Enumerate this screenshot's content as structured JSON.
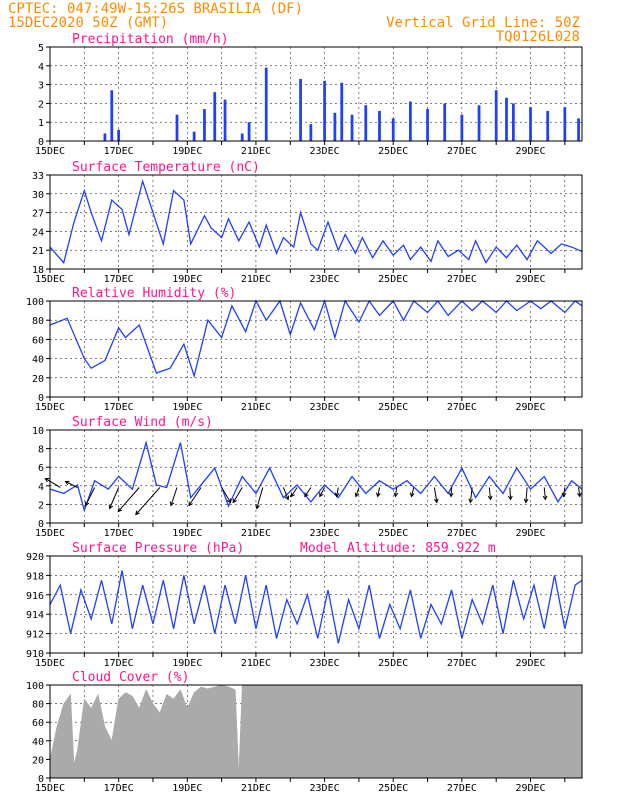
{
  "header": {
    "station": "CPTEC:  047:49W-15:26S  BRASILIA (DF)",
    "datetime": "15DEC2020 50Z (GMT)",
    "vgrid": "Vertical Grid Line: 50Z",
    "code": "TQ0126L028"
  },
  "colors": {
    "header": "#ff8c00",
    "title": "#ff1493",
    "line": "#1f3fff",
    "bar": "#1f3fff",
    "cloud": "#aaaaaa",
    "arrow": "#000000"
  },
  "chart_data": [
    {
      "id": "precip",
      "type": "bar",
      "title": "Precipitation (mm/h)",
      "ylim": [
        0,
        5
      ],
      "yticks": [
        "0",
        "1",
        "2",
        "3",
        "4",
        "5"
      ],
      "xlim": [
        0,
        15.5
      ],
      "xtick_labels": [
        "15DEC",
        "17DEC",
        "19DEC",
        "21DEC",
        "23DEC",
        "25DEC",
        "27DEC",
        "29DEC"
      ],
      "x": [
        1.6,
        1.8,
        2.0,
        3.7,
        4.2,
        4.5,
        4.8,
        5.1,
        5.6,
        5.8,
        6.3,
        7.3,
        7.6,
        8.0,
        8.3,
        8.5,
        8.8,
        9.2,
        9.6,
        10.0,
        10.5,
        11.0,
        11.5,
        12.0,
        12.5,
        13.0,
        13.3,
        13.5,
        14.0,
        14.5,
        15.0,
        15.4
      ],
      "values": [
        0.4,
        2.7,
        0.6,
        1.4,
        0.5,
        1.7,
        2.6,
        2.2,
        0.4,
        1.0,
        3.9,
        3.3,
        0.9,
        3.2,
        1.5,
        3.1,
        1.4,
        1.9,
        1.6,
        1.2,
        2.1,
        1.7,
        2.0,
        1.4,
        1.9,
        2.7,
        2.3,
        2.0,
        1.8,
        1.6,
        1.8,
        1.2
      ]
    },
    {
      "id": "temp",
      "type": "line",
      "title": "Surface Temperature (nC)",
      "ylim": [
        18,
        33
      ],
      "yticks": [
        "18",
        "21",
        "24",
        "27",
        "30",
        "33"
      ],
      "xlim": [
        0,
        15.5
      ],
      "xtick_labels": [
        "15DEC",
        "17DEC",
        "19DEC",
        "21DEC",
        "23DEC",
        "25DEC",
        "27DEC",
        "29DEC"
      ],
      "x": [
        0,
        0.4,
        0.7,
        1.0,
        1.2,
        1.5,
        1.8,
        2.1,
        2.3,
        2.7,
        3.0,
        3.3,
        3.6,
        3.9,
        4.1,
        4.5,
        4.7,
        5.0,
        5.2,
        5.5,
        5.8,
        6.1,
        6.3,
        6.6,
        6.8,
        7.1,
        7.3,
        7.6,
        7.8,
        8.1,
        8.4,
        8.6,
        8.9,
        9.1,
        9.4,
        9.7,
        10.0,
        10.3,
        10.5,
        10.8,
        11.1,
        11.3,
        11.6,
        11.9,
        12.2,
        12.4,
        12.7,
        13.0,
        13.3,
        13.6,
        13.9,
        14.2,
        14.6,
        14.9,
        15.2,
        15.5
      ],
      "values": [
        21.5,
        19.0,
        25.5,
        30.5,
        27.0,
        22.5,
        29.0,
        27.5,
        23.5,
        32.0,
        27.0,
        22.0,
        30.5,
        29.0,
        22.0,
        26.5,
        24.5,
        23.0,
        26.0,
        22.5,
        25.5,
        21.5,
        25.0,
        20.5,
        23.0,
        21.5,
        27.0,
        22.0,
        21.0,
        25.5,
        21.0,
        23.5,
        20.5,
        23.0,
        19.8,
        22.5,
        20.2,
        21.8,
        19.5,
        21.5,
        19.2,
        22.5,
        20.0,
        21.0,
        19.5,
        22.5,
        19.0,
        21.5,
        19.8,
        21.8,
        19.5,
        22.5,
        20.5,
        22.0,
        21.5,
        20.8
      ]
    },
    {
      "id": "rh",
      "type": "line",
      "title": "Relative Humidity (%)",
      "ylim": [
        0,
        100
      ],
      "yticks": [
        "0",
        "20",
        "40",
        "60",
        "80",
        "100"
      ],
      "xlim": [
        0,
        15.5
      ],
      "xtick_labels": [
        "15DEC",
        "17DEC",
        "19DEC",
        "21DEC",
        "23DEC",
        "25DEC",
        "27DEC",
        "29DEC"
      ],
      "x": [
        0,
        0.5,
        1.0,
        1.2,
        1.6,
        2.0,
        2.2,
        2.6,
        3.1,
        3.5,
        3.9,
        4.2,
        4.6,
        5.0,
        5.3,
        5.7,
        6.0,
        6.3,
        6.7,
        7.0,
        7.3,
        7.7,
        8.0,
        8.3,
        8.6,
        9.0,
        9.3,
        9.6,
        10.0,
        10.3,
        10.6,
        11.0,
        11.3,
        11.6,
        12.0,
        12.3,
        12.6,
        13.0,
        13.3,
        13.6,
        14.0,
        14.3,
        14.6,
        15.0,
        15.3,
        15.5
      ],
      "values": [
        75,
        82,
        40,
        30,
        38,
        72,
        62,
        75,
        25,
        30,
        55,
        22,
        80,
        62,
        95,
        68,
        100,
        80,
        100,
        65,
        98,
        70,
        100,
        62,
        100,
        78,
        100,
        85,
        100,
        80,
        100,
        88,
        100,
        85,
        100,
        90,
        100,
        88,
        100,
        90,
        100,
        92,
        100,
        88,
        100,
        95
      ]
    },
    {
      "id": "wind",
      "type": "line",
      "title": "Surface Wind (m/s)",
      "ylim": [
        0,
        11
      ],
      "yticks": [
        "0",
        "2",
        "4",
        "6",
        "8",
        "10"
      ],
      "xlim": [
        0,
        15.5
      ],
      "xtick_labels": [
        "15DEC",
        "17DEC",
        "19DEC",
        "21DEC",
        "23DEC",
        "25DEC",
        "27DEC",
        "29DEC"
      ],
      "x": [
        0,
        0.4,
        0.8,
        1.0,
        1.3,
        1.7,
        2.0,
        2.4,
        2.8,
        3.1,
        3.4,
        3.8,
        4.1,
        4.4,
        4.8,
        5.2,
        5.6,
        6.0,
        6.4,
        6.8,
        7.2,
        7.6,
        8.0,
        8.4,
        8.8,
        9.2,
        9.6,
        10.0,
        10.4,
        10.8,
        11.2,
        11.6,
        12.0,
        12.4,
        12.8,
        13.2,
        13.6,
        14.0,
        14.4,
        14.8,
        15.2,
        15.5
      ],
      "values": [
        4.0,
        3.5,
        4.5,
        1.5,
        5.0,
        4.0,
        5.5,
        4.0,
        9.5,
        4.5,
        4.2,
        9.5,
        3.0,
        4.5,
        6.5,
        2.0,
        5.5,
        3.5,
        6.5,
        3.0,
        4.5,
        2.5,
        4.5,
        3.0,
        5.5,
        3.5,
        5.0,
        4.0,
        5.0,
        3.5,
        5.5,
        3.5,
        6.5,
        3.0,
        5.5,
        3.5,
        6.5,
        4.0,
        5.5,
        2.5,
        5.0,
        4.0
      ],
      "arrow_x": [
        0.3,
        0.8,
        1.3,
        2.0,
        2.6,
        3.2,
        3.7,
        4.4,
        5.0,
        5.6,
        6.2,
        6.8,
        7.2,
        7.6,
        8.0,
        8.4,
        9.0,
        9.6,
        10.1,
        10.6,
        11.2,
        11.7,
        12.3,
        12.8,
        13.4,
        13.9,
        14.4,
        15.0,
        15.4
      ],
      "arrow_u": [
        -2.5,
        -2.0,
        -1.5,
        -1.5,
        -3.5,
        -4.0,
        -1.0,
        -2.0,
        1.5,
        -1.5,
        -1.0,
        0.8,
        -1.0,
        -1.0,
        -0.8,
        -0.3,
        -0.5,
        -0.3,
        -0.2,
        -0.4,
        0.4,
        -0.1,
        -0.3,
        0.2,
        0.1,
        -0.2,
        0.2,
        -0.2,
        0.2
      ],
      "arrow_v": [
        1.5,
        1.0,
        -3.0,
        -3.5,
        -4.0,
        -4.5,
        -3.0,
        -3.0,
        -2.5,
        -2.5,
        -3.5,
        -2.0,
        -1.5,
        -1.5,
        -1.5,
        -1.5,
        -1.5,
        -1.5,
        -1.5,
        -1.5,
        -2.5,
        -1.5,
        -2.5,
        -2.0,
        -2.0,
        -2.5,
        -2.0,
        -1.5,
        -1.5
      ]
    },
    {
      "id": "pres",
      "type": "line",
      "title": "Surface Pressure (hPa)",
      "annotation": "Model Altitude: 859.922  m",
      "ylim": [
        910,
        920
      ],
      "yticks": [
        "910",
        "912",
        "914",
        "916",
        "918",
        "920"
      ],
      "xlim": [
        0,
        15.5
      ],
      "xtick_labels": [
        "15DEC",
        "17DEC",
        "19DEC",
        "21DEC",
        "23DEC",
        "25DEC",
        "27DEC",
        "29DEC"
      ],
      "x": [
        0,
        0.3,
        0.6,
        0.9,
        1.2,
        1.5,
        1.8,
        2.1,
        2.4,
        2.7,
        3.0,
        3.3,
        3.6,
        3.9,
        4.2,
        4.5,
        4.8,
        5.1,
        5.4,
        5.7,
        6.0,
        6.3,
        6.6,
        6.9,
        7.2,
        7.5,
        7.8,
        8.1,
        8.4,
        8.7,
        9.0,
        9.3,
        9.6,
        9.9,
        10.2,
        10.5,
        10.8,
        11.1,
        11.4,
        11.7,
        12.0,
        12.3,
        12.6,
        12.9,
        13.2,
        13.5,
        13.8,
        14.1,
        14.4,
        14.7,
        15.0,
        15.3,
        15.5
      ],
      "values": [
        915.0,
        917.0,
        912.0,
        916.5,
        913.5,
        917.5,
        913.0,
        918.5,
        912.5,
        917.0,
        913.0,
        917.5,
        912.5,
        918.0,
        913.0,
        917.0,
        912.0,
        917.0,
        913.0,
        918.0,
        912.5,
        917.0,
        911.5,
        915.5,
        913.0,
        916.0,
        911.5,
        916.5,
        911.0,
        915.5,
        912.5,
        917.0,
        911.5,
        915.0,
        912.5,
        916.5,
        911.5,
        915.0,
        913.0,
        916.5,
        911.5,
        915.5,
        913.0,
        917.0,
        912.0,
        917.5,
        913.5,
        917.0,
        912.5,
        918.0,
        912.5,
        917.0,
        917.5
      ]
    },
    {
      "id": "cloud",
      "type": "area",
      "title": "Cloud Cover (%)",
      "ylim": [
        0,
        100
      ],
      "yticks": [
        "0",
        "20",
        "40",
        "60",
        "80",
        "100"
      ],
      "xlim": [
        0,
        15.5
      ],
      "xtick_labels": [
        "15DEC",
        "17DEC",
        "19DEC",
        "21DEC",
        "23DEC",
        "25DEC",
        "27DEC",
        "29DEC"
      ],
      "x": [
        0,
        0.2,
        0.4,
        0.6,
        0.7,
        0.8,
        1.0,
        1.2,
        1.4,
        1.6,
        1.8,
        2.0,
        2.2,
        2.4,
        2.6,
        2.8,
        3.0,
        3.2,
        3.4,
        3.6,
        3.8,
        4.0,
        4.2,
        4.4,
        4.6,
        4.8,
        5.0,
        5.2,
        5.4,
        5.5,
        5.6,
        5.8,
        6.0,
        6.2,
        6.5,
        7.0,
        8.0,
        9.0,
        10.0,
        11.0,
        12.0,
        13.0,
        14.0,
        15.0,
        15.5
      ],
      "values": [
        20,
        55,
        80,
        90,
        15,
        30,
        85,
        75,
        90,
        55,
        40,
        85,
        92,
        88,
        75,
        95,
        80,
        70,
        90,
        85,
        95,
        75,
        92,
        98,
        96,
        98,
        100,
        98,
        95,
        5,
        100,
        100,
        100,
        100,
        100,
        100,
        100,
        100,
        100,
        100,
        100,
        100,
        100,
        100,
        100
      ]
    }
  ]
}
